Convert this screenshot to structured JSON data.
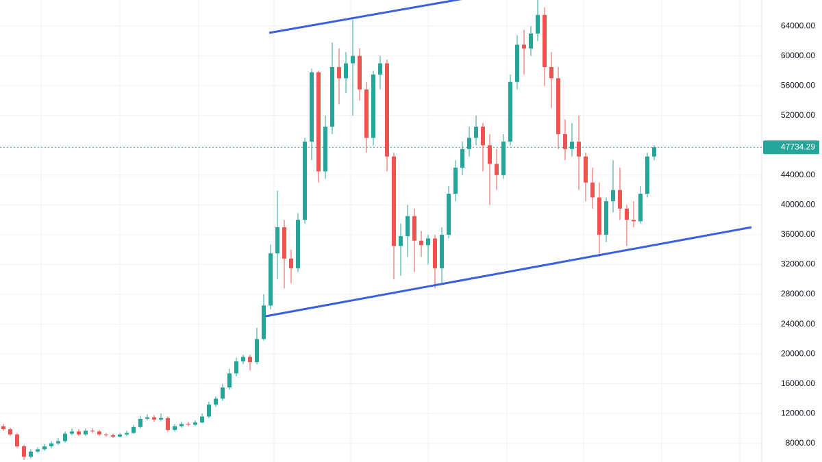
{
  "chart_data": {
    "type": "candlestick",
    "up_color": "#26a69a",
    "down_color": "#ef5350",
    "grid": true,
    "ylim": [
      5500,
      67500
    ],
    "yticks": [
      {
        "value": 8000,
        "label": "8000.00"
      },
      {
        "value": 12000,
        "label": "12000.00"
      },
      {
        "value": 16000,
        "label": "16000.00"
      },
      {
        "value": 20000,
        "label": "20000.00"
      },
      {
        "value": 24000,
        "label": "24000.00"
      },
      {
        "value": 28000,
        "label": "28000.00"
      },
      {
        "value": 32000,
        "label": "32000.00"
      },
      {
        "value": 36000,
        "label": "36000.00"
      },
      {
        "value": 40000,
        "label": "40000.00"
      },
      {
        "value": 44000,
        "label": "44000.00"
      },
      {
        "value": 48000,
        "label": "48000.00"
      },
      {
        "value": 52000,
        "label": "52000.00"
      },
      {
        "value": 56000,
        "label": "56000.00"
      },
      {
        "value": 60000,
        "label": "60000.00"
      },
      {
        "value": 64000,
        "label": "64000.00"
      }
    ],
    "open": [
      10300,
      9900,
      9200,
      7600,
      6200,
      6900,
      7200,
      7600,
      8000,
      8300,
      9300,
      9600,
      9200,
      9700,
      9600,
      9200,
      9100,
      8900,
      9200,
      9400,
      10200,
      11300,
      11500,
      11200,
      11400,
      9800,
      10300,
      10600,
      10500,
      10800,
      11600,
      13200,
      14000,
      15500,
      17400,
      19000,
      19600,
      18900,
      22000,
      26500,
      33500,
      37000,
      32800,
      31500,
      38000,
      48500,
      57800,
      44500,
      50500,
      58500,
      57000,
      59000,
      60000,
      55500,
      49000,
      57500,
      59000,
      46500,
      34500,
      35800,
      38500,
      35200,
      34600,
      35500,
      31500,
      36000,
      41500,
      45000,
      47500,
      49000,
      50500,
      48000,
      45500,
      44000,
      48500,
      56500,
      61500,
      61000,
      63000,
      65500,
      58500,
      57000,
      49500,
      47500,
      48500,
      46500,
      43000,
      41000,
      36000,
      40500,
      42000,
      39500,
      38000,
      37800,
      41500,
      46500
    ],
    "high": [
      10600,
      10100,
      9400,
      7800,
      7200,
      7500,
      7900,
      8300,
      8700,
      9600,
      10000,
      9900,
      10000,
      10000,
      9800,
      9400,
      9300,
      9400,
      9700,
      10500,
      11700,
      11900,
      11800,
      12000,
      11600,
      10600,
      10900,
      10900,
      11100,
      12000,
      13600,
      14300,
      16000,
      18000,
      19500,
      19900,
      19900,
      23500,
      28000,
      34700,
      41900,
      38000,
      34000,
      38900,
      49000,
      58300,
      58000,
      52000,
      61800,
      61000,
      60500,
      64900,
      61000,
      56500,
      58000,
      60000,
      59500,
      47000,
      37500,
      40000,
      39500,
      36500,
      36000,
      36000,
      37000,
      42500,
      46000,
      48500,
      50500,
      52000,
      51000,
      49500,
      47500,
      49500,
      57500,
      62800,
      63500,
      64000,
      69000,
      66500,
      60500,
      58500,
      51500,
      51000,
      52000,
      47000,
      45000,
      43000,
      41000,
      46000,
      45000,
      40000,
      40500,
      42500,
      47000,
      48000
    ],
    "low": [
      9700,
      9000,
      7400,
      5800,
      6000,
      6700,
      7000,
      7400,
      7800,
      8100,
      9100,
      9000,
      9000,
      9400,
      9000,
      8900,
      8700,
      8800,
      9000,
      9300,
      10000,
      11100,
      10900,
      11000,
      9600,
      9600,
      10100,
      10300,
      10300,
      10700,
      11400,
      12900,
      13700,
      15200,
      17000,
      18600,
      17800,
      18600,
      21800,
      26000,
      30000,
      28800,
      29500,
      31000,
      37500,
      46000,
      43000,
      43500,
      49500,
      53500,
      55000,
      52000,
      54000,
      47000,
      48000,
      55500,
      44500,
      30000,
      30500,
      33000,
      31000,
      33000,
      32000,
      28800,
      29300,
      35500,
      40500,
      44000,
      46500,
      48000,
      44500,
      40000,
      42000,
      43500,
      48000,
      55500,
      57500,
      60000,
      62000,
      56000,
      53000,
      47500,
      46000,
      46500,
      42000,
      40500,
      39500,
      33000,
      35000,
      39000,
      38000,
      34500,
      37000,
      37500,
      41000,
      46000
    ],
    "close": [
      9900,
      9200,
      7600,
      6200,
      6900,
      7200,
      7600,
      8000,
      8300,
      9300,
      9600,
      9200,
      9700,
      9600,
      9200,
      9100,
      8900,
      9200,
      9400,
      10200,
      11300,
      11500,
      11200,
      11400,
      9800,
      10300,
      10600,
      10500,
      10800,
      11600,
      13200,
      14000,
      15500,
      17400,
      19000,
      19600,
      18900,
      22000,
      26500,
      33500,
      37000,
      32800,
      31500,
      38000,
      48500,
      57800,
      44500,
      50500,
      58500,
      57000,
      59000,
      60000,
      55500,
      49000,
      57500,
      59000,
      46500,
      34500,
      35800,
      38500,
      35200,
      34600,
      35500,
      31500,
      36000,
      41500,
      45000,
      47500,
      49000,
      50500,
      48000,
      45500,
      44000,
      48500,
      56500,
      61500,
      61000,
      63000,
      65500,
      58500,
      57000,
      49500,
      47500,
      48500,
      46500,
      43000,
      41000,
      36000,
      40500,
      42000,
      39500,
      38000,
      37800,
      41500,
      46500,
      47734.29
    ]
  }
}
